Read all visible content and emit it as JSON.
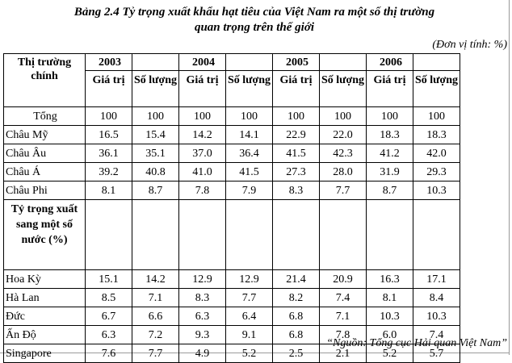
{
  "title_line1": "Bảng 2.4 Tỷ trọng xuất khẩu hạt tiêu của Việt Nam ra một số thị trường",
  "title_line2": "quan trọng trên thế giới",
  "unit": "(Đơn vị tính: %)",
  "header": {
    "market": "Thị trường chính",
    "years": [
      "2003",
      "2004",
      "2005",
      "2006"
    ],
    "value_label": "Giá trị",
    "quantity_label": "Số lượng"
  },
  "rows": [
    {
      "label": "Tổng",
      "values": [
        "100",
        "100",
        "100",
        "100",
        "100",
        "100",
        "100",
        "100"
      ]
    },
    {
      "label": "Châu Mỹ",
      "values": [
        "16.5",
        "15.4",
        "14.2",
        "14.1",
        "22.9",
        "22.0",
        "18.3",
        "18.3"
      ]
    },
    {
      "label": "Châu Âu",
      "values": [
        "36.1",
        "35.1",
        "37.0",
        "36.4",
        "41.5",
        "42.3",
        "41.2",
        "42.0"
      ]
    },
    {
      "label": "Châu Á",
      "values": [
        "39.2",
        "40.8",
        "41.0",
        "41.5",
        "27.3",
        "28.0",
        "31.9",
        "29.3"
      ]
    },
    {
      "label": "Châu Phi",
      "values": [
        "8.1",
        "8.7",
        "7.8",
        "7.9",
        "8.3",
        "7.7",
        "8.7",
        "10.3"
      ]
    }
  ],
  "section_label": "Tỷ trọng xuất sang một số nước (%)",
  "country_rows": [
    {
      "label": "Hoa Kỳ",
      "values": [
        "15.1",
        "14.2",
        "12.9",
        "12.9",
        "21.4",
        "20.9",
        "16.3",
        "17.1"
      ]
    },
    {
      "label": "Hà Lan",
      "values": [
        "8.5",
        "7.1",
        "8.3",
        "7.7",
        "8.2",
        "7.4",
        "8.1",
        "8.4"
      ]
    },
    {
      "label": "Đức",
      "values": [
        "6.7",
        "6.6",
        "6.3",
        "6.4",
        "6.8",
        "7.1",
        "10.3",
        "10.3"
      ]
    },
    {
      "label": "Ấn Độ",
      "values": [
        "6.3",
        "7.2",
        "9.3",
        "9.1",
        "6.8",
        "7.8",
        "6.0",
        "7.4"
      ]
    },
    {
      "label": "Singapore",
      "values": [
        "7.6",
        "7.7",
        "4.9",
        "5.2",
        "2.5",
        "2.1",
        "5.2",
        "5.7"
      ]
    }
  ],
  "source": "“Nguồn: Tổng cục Hải quan Việt Nam”"
}
